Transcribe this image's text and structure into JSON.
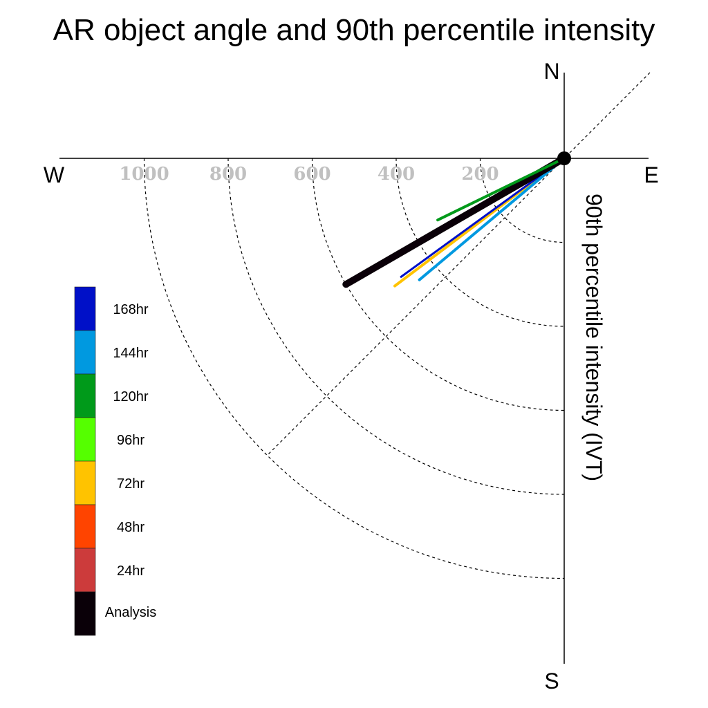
{
  "chart_data": {
    "type": "polar-vector",
    "title": "AR object angle and 90th percentile intensity",
    "ylabel": "90th percentile intensity (IVT)",
    "directions": {
      "north": "N",
      "south": "S",
      "east": "E",
      "west": "W"
    },
    "radial_ticks": [
      200,
      400,
      600,
      800,
      1000
    ],
    "radial_range": [
      0,
      1200
    ],
    "grid": true,
    "legend_position": "left",
    "series": [
      {
        "name": "168hr",
        "color": "#0010c8",
        "angle_below_west_deg": 36,
        "intensity": 480
      },
      {
        "name": "144hr",
        "color": "#0099e0",
        "angle_below_west_deg": 40,
        "intensity": 450
      },
      {
        "name": "120hr",
        "color": "#009a1a",
        "angle_below_west_deg": 26,
        "intensity": 335
      },
      {
        "name": "96hr",
        "color": "#55ff00",
        "angle_below_west_deg": 36,
        "intensity": 480
      },
      {
        "name": "72hr",
        "color": "#ffc300",
        "angle_below_west_deg": 37,
        "intensity": 505
      },
      {
        "name": "48hr",
        "color": "#ff4400",
        "angle_below_west_deg": 30,
        "intensity": 570
      },
      {
        "name": "24hr",
        "color": "#cc3b3b",
        "angle_below_west_deg": 30,
        "intensity": 570
      },
      {
        "name": "Analysis",
        "color": "#0a0008",
        "angle_below_west_deg": 30,
        "intensity": 600
      }
    ]
  }
}
